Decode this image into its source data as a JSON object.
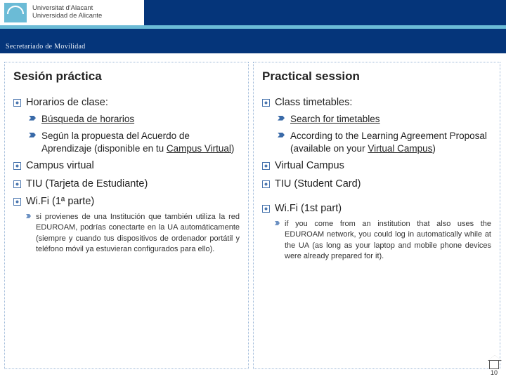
{
  "banner": {
    "uni_line1": "Universitat d'Alacant",
    "uni_line2": "Universidad de Alicante",
    "subtitle": "Secretariado de Movilidad"
  },
  "left": {
    "heading": "Sesión práctica",
    "items": [
      {
        "text": "Horarios de clase:",
        "sub": [
          {
            "text_html": "<span class='u'>Búsqueda de horarios</span>"
          },
          {
            "text_html": "Según la propuesta del Acuerdo de Aprendizaje (disponible en tu <span class='u'>Campus Virtual</span>)"
          }
        ]
      },
      {
        "text": "Campus virtual"
      },
      {
        "text": "TIU (Tarjeta de Estudiante)"
      },
      {
        "text": "Wi.Fi (1ª parte)",
        "sub": [
          {
            "sub3": [
              "si provienes de una Institución que también utiliza la red EDUROAM, podrías conectarte en la UA automáticamente (siempre y cuando tus dispositivos de ordenador portátil y teléfono móvil ya estuvieran configurados para ello)."
            ]
          }
        ]
      }
    ]
  },
  "right": {
    "heading": "Practical session",
    "items": [
      {
        "text": "Class timetables:",
        "sub": [
          {
            "text_html": "<span class='u'>Search for timetables</span>"
          },
          {
            "text_html": "According to the Learning Agreement Proposal (available on your <span class='u'>Virtual Campus</span>)"
          }
        ]
      },
      {
        "text": "Virtual Campus"
      },
      {
        "text": "TIU (Student Card)"
      },
      {
        "text": "Wi.Fi (1st part)",
        "spacer": true,
        "sub": [
          {
            "sub3": [
              "if you come from an institution that also uses the EDUROAM network, you could log in automatically while at the UA (as long as your laptop and mobile phone devices were already prepared for it)."
            ]
          }
        ]
      }
    ]
  },
  "slide_no": "10"
}
